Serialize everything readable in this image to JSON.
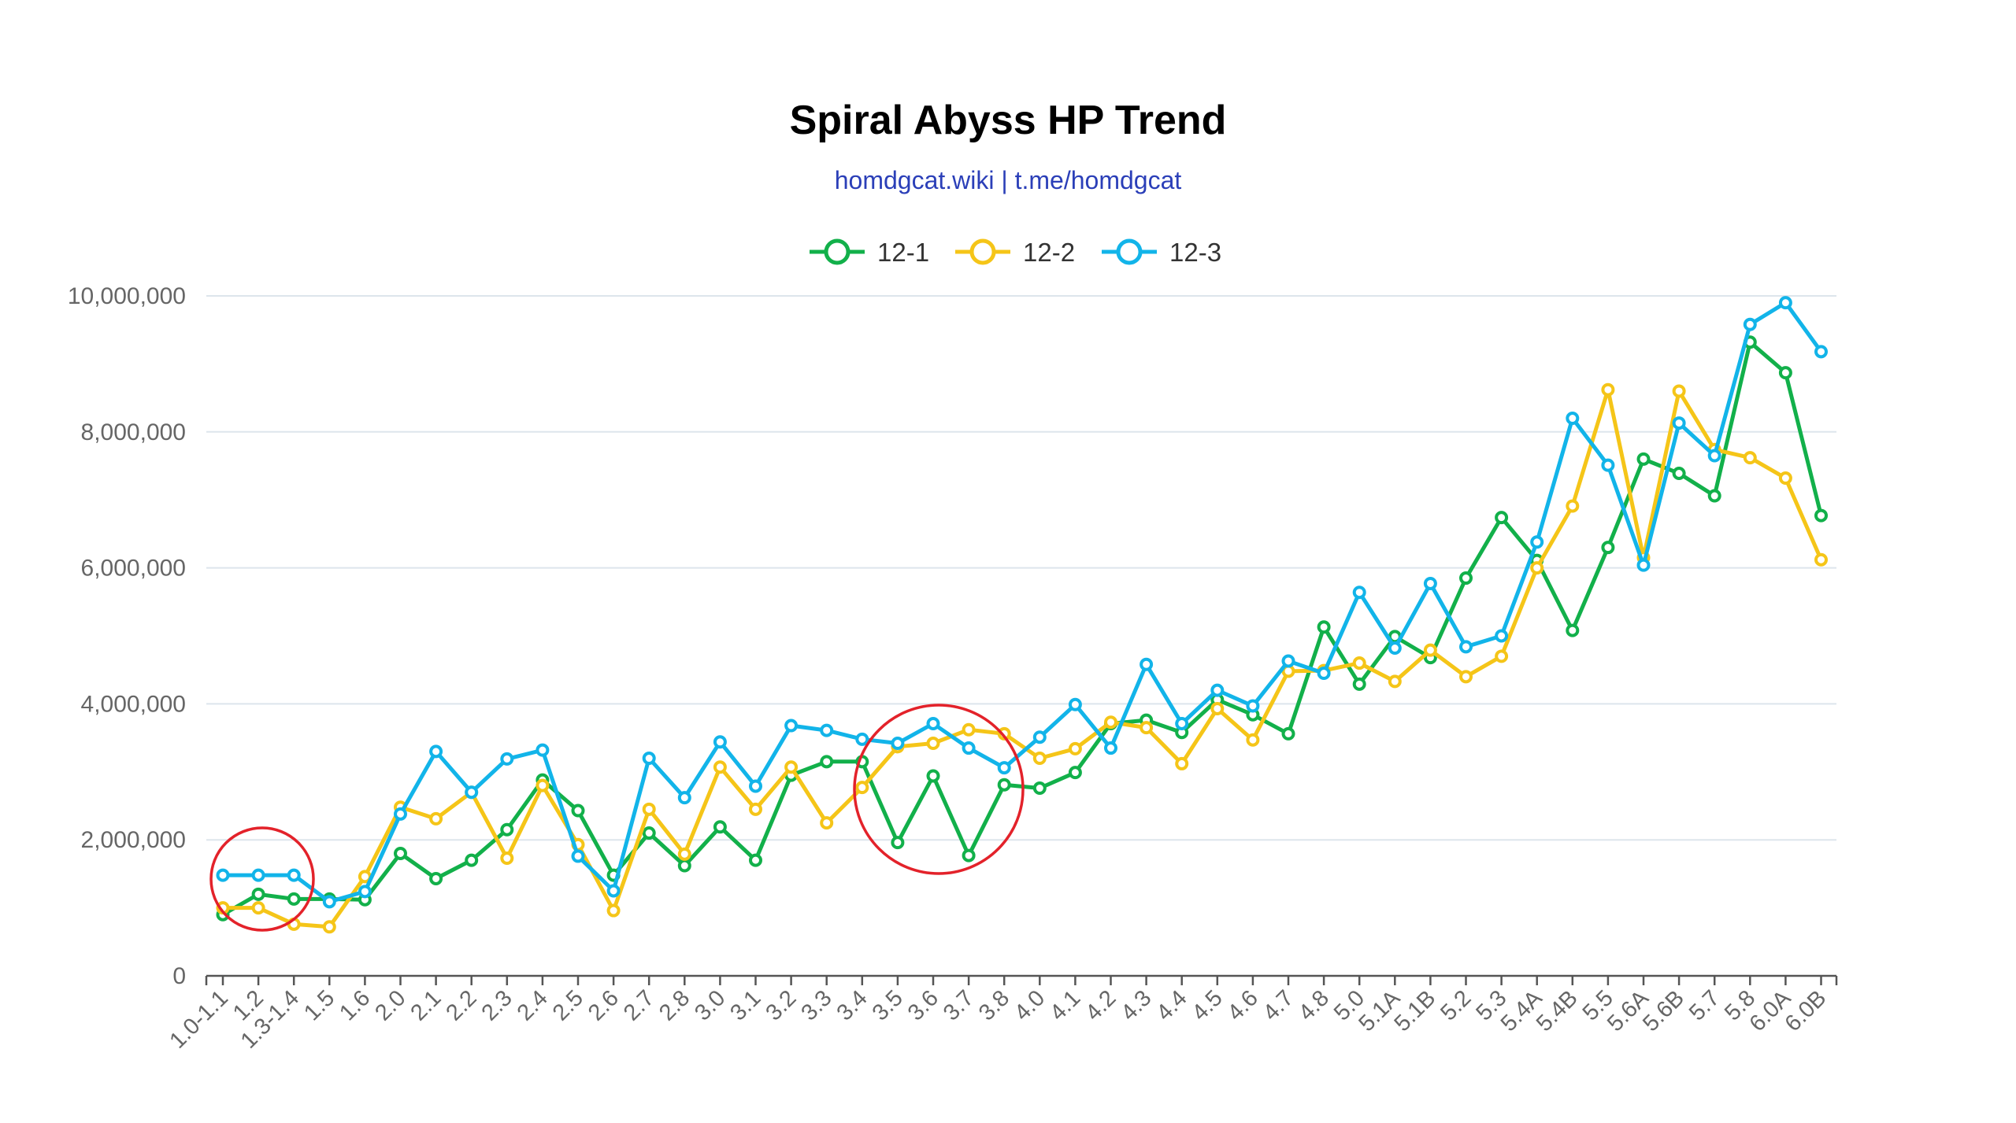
{
  "chart_data": {
    "type": "line",
    "title": "Spiral Abyss HP Trend",
    "subtitle": "homdgcat.wiki | t.me/homdgcat",
    "xlabel": "",
    "ylabel": "",
    "ylim": [
      0,
      10000000
    ],
    "yticks": [
      0,
      2000000,
      4000000,
      6000000,
      8000000,
      10000000
    ],
    "ytick_labels": [
      "0",
      "2,000,000",
      "4,000,000",
      "6,000,000",
      "8,000,000",
      "10,000,000"
    ],
    "grid": true,
    "legend_position": "top-center",
    "categories": [
      "1.0-1.1",
      "1.2",
      "1.3-1.4",
      "1.5",
      "1.6",
      "2.0",
      "2.1",
      "2.2",
      "2.3",
      "2.4",
      "2.5",
      "2.6",
      "2.7",
      "2.8",
      "3.0",
      "3.1",
      "3.2",
      "3.3",
      "3.4",
      "3.5",
      "3.6",
      "3.7",
      "3.8",
      "4.0",
      "4.1",
      "4.2",
      "4.3",
      "4.4",
      "4.5",
      "4.6",
      "4.7",
      "4.8",
      "5.0",
      "5.1A",
      "5.1B",
      "5.2",
      "5.3",
      "5.4A",
      "5.4B",
      "5.5",
      "5.6A",
      "5.6B",
      "5.7",
      "5.8",
      "6.0A",
      "6.0B"
    ],
    "series": [
      {
        "name": "12-1",
        "color": "#12b04a",
        "values": [
          900000,
          1200000,
          1130000,
          1130000,
          1120000,
          1800000,
          1430000,
          1700000,
          2150000,
          2880000,
          2430000,
          1480000,
          2100000,
          1620000,
          2190000,
          1700000,
          2950000,
          3150000,
          3150000,
          1960000,
          2940000,
          1770000,
          2810000,
          2760000,
          2990000,
          3710000,
          3760000,
          3580000,
          4060000,
          3840000,
          3560000,
          5130000,
          4290000,
          4990000,
          4680000,
          5850000,
          6740000,
          6110000,
          5080000,
          6300000,
          7600000,
          7390000,
          7060000,
          9320000,
          8870000,
          6770000
        ]
      },
      {
        "name": "12-2",
        "color": "#f5c518",
        "values": [
          1000000,
          1000000,
          760000,
          720000,
          1460000,
          2480000,
          2310000,
          2700000,
          1730000,
          2800000,
          1930000,
          960000,
          2450000,
          1790000,
          3070000,
          2450000,
          3070000,
          2250000,
          2770000,
          3370000,
          3420000,
          3620000,
          3560000,
          3200000,
          3340000,
          3730000,
          3650000,
          3120000,
          3930000,
          3470000,
          4480000,
          4490000,
          4600000,
          4330000,
          4790000,
          4400000,
          4700000,
          6000000,
          6910000,
          8620000,
          6150000,
          8600000,
          7740000,
          7620000,
          7320000,
          6120000
        ]
      },
      {
        "name": "12-3",
        "color": "#12b4e9",
        "values": [
          1480000,
          1480000,
          1480000,
          1090000,
          1240000,
          2380000,
          3300000,
          2700000,
          3190000,
          3320000,
          1760000,
          1250000,
          3200000,
          2620000,
          3440000,
          2790000,
          3680000,
          3610000,
          3480000,
          3420000,
          3710000,
          3350000,
          3060000,
          3510000,
          3990000,
          3350000,
          4580000,
          3710000,
          4200000,
          3970000,
          4630000,
          4450000,
          5640000,
          4820000,
          5770000,
          4840000,
          5000000,
          6380000,
          8200000,
          7510000,
          6040000,
          8130000,
          7650000,
          9580000,
          9900000,
          9180000
        ]
      }
    ]
  }
}
